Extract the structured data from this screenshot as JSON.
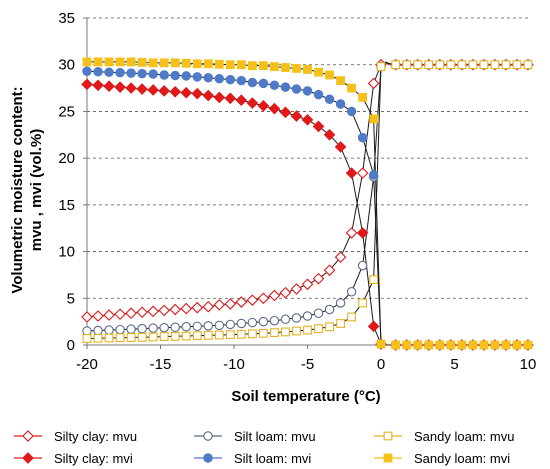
{
  "chart_data": {
    "type": "line",
    "title": "",
    "xlabel": "Soil temperature (°C)",
    "ylabel_line1": "Volumetric moisture content:",
    "ylabel_line2": "mvu , mvi  (vol.%)",
    "xlim": [
      -20,
      10
    ],
    "ylim": [
      0,
      35
    ],
    "xticks": [
      -20,
      -15,
      -10,
      -5,
      0,
      5,
      10
    ],
    "yticks": [
      0,
      5,
      10,
      15,
      20,
      25,
      30,
      35
    ],
    "grid": "horizontal dashed",
    "legend_position": "bottom",
    "series": [
      {
        "name": "Silty clay: mvu",
        "color": "#e0191b",
        "marker": "diamond",
        "filled": false,
        "x": [
          -20,
          -19.25,
          -18.5,
          -17.75,
          -17,
          -16.25,
          -15.5,
          -14.75,
          -14,
          -13.25,
          -12.5,
          -11.75,
          -11,
          -10.25,
          -9.5,
          -8.75,
          -8,
          -7.25,
          -6.5,
          -5.75,
          -5,
          -4.25,
          -3.5,
          -2.75,
          -2,
          -1.25,
          -0.5,
          0,
          0.3,
          0.6,
          1,
          1.75,
          2.5,
          3.25,
          4,
          4.75,
          5.5,
          6.25,
          7,
          7.75,
          8.5,
          9.25,
          10
        ],
        "y": [
          3.0,
          3.1,
          3.2,
          3.3,
          3.4,
          3.5,
          3.6,
          3.7,
          3.8,
          3.9,
          4.0,
          4.1,
          4.3,
          4.4,
          4.6,
          4.8,
          5.0,
          5.3,
          5.6,
          6.0,
          6.5,
          7.1,
          8.0,
          9.4,
          12.0,
          18.4,
          28.0,
          30.0,
          30.2,
          30.1,
          30.0,
          30.0,
          30.0,
          30.0,
          30.0,
          30.0,
          30.0,
          30.0,
          30.0,
          30.0,
          30.0,
          30.0,
          30.0
        ]
      },
      {
        "name": "Silt loam: mvu",
        "color": "#5a6a87",
        "marker": "circle",
        "filled": false,
        "x": [
          -20,
          -19.25,
          -18.5,
          -17.75,
          -17,
          -16.25,
          -15.5,
          -14.75,
          -14,
          -13.25,
          -12.5,
          -11.75,
          -11,
          -10.25,
          -9.5,
          -8.75,
          -8,
          -7.25,
          -6.5,
          -5.75,
          -5,
          -4.25,
          -3.5,
          -2.75,
          -2,
          -1.25,
          -0.5,
          0,
          0.3,
          0.6,
          1,
          1.75,
          2.5,
          3.25,
          4,
          4.75,
          5.5,
          6.25,
          7,
          7.75,
          8.5,
          9.25,
          10
        ],
        "y": [
          1.5,
          1.55,
          1.6,
          1.65,
          1.7,
          1.75,
          1.8,
          1.85,
          1.9,
          1.95,
          2.0,
          2.05,
          2.1,
          2.2,
          2.3,
          2.4,
          2.5,
          2.6,
          2.75,
          2.9,
          3.1,
          3.4,
          3.8,
          4.5,
          5.7,
          8.5,
          18.0,
          29.8,
          30.2,
          30.1,
          30.0,
          30.0,
          30.0,
          30.0,
          30.0,
          30.0,
          30.0,
          30.0,
          30.0,
          30.0,
          30.0,
          30.0,
          30.0
        ]
      },
      {
        "name": "Sandy loam: mvu",
        "color": "#e3b21f",
        "marker": "square",
        "filled": false,
        "x": [
          -20,
          -19.25,
          -18.5,
          -17.75,
          -17,
          -16.25,
          -15.5,
          -14.75,
          -14,
          -13.25,
          -12.5,
          -11.75,
          -11,
          -10.25,
          -9.5,
          -8.75,
          -8,
          -7.25,
          -6.5,
          -5.75,
          -5,
          -4.25,
          -3.5,
          -2.75,
          -2,
          -1.25,
          -0.5,
          0,
          0.3,
          0.6,
          1,
          1.75,
          2.5,
          3.25,
          4,
          4.75,
          5.5,
          6.25,
          7,
          7.75,
          8.5,
          9.25,
          10
        ],
        "y": [
          0.7,
          0.72,
          0.75,
          0.78,
          0.8,
          0.83,
          0.86,
          0.9,
          0.93,
          0.96,
          1.0,
          1.03,
          1.07,
          1.1,
          1.15,
          1.2,
          1.25,
          1.32,
          1.4,
          1.5,
          1.6,
          1.75,
          1.95,
          2.3,
          3.0,
          4.5,
          7.0,
          29.8,
          30.3,
          30.1,
          30.0,
          30.0,
          30.0,
          30.0,
          30.0,
          30.0,
          30.0,
          30.0,
          30.0,
          30.0,
          30.0,
          30.0,
          30.0
        ]
      },
      {
        "name": "Silty clay: mvi",
        "color": "#e0191b",
        "marker": "diamond",
        "filled": true,
        "x": [
          -20,
          -19.25,
          -18.5,
          -17.75,
          -17,
          -16.25,
          -15.5,
          -14.75,
          -14,
          -13.25,
          -12.5,
          -11.75,
          -11,
          -10.25,
          -9.5,
          -8.75,
          -8,
          -7.25,
          -6.5,
          -5.75,
          -5,
          -4.25,
          -3.5,
          -2.75,
          -2,
          -1.25,
          -0.5,
          0,
          0.3,
          0.6,
          1,
          1.75,
          2.5,
          3.25,
          4,
          4.75,
          5.5,
          6.25,
          7,
          7.75,
          8.5,
          9.25,
          10
        ],
        "y": [
          27.9,
          27.8,
          27.7,
          27.6,
          27.5,
          27.4,
          27.3,
          27.2,
          27.1,
          27.0,
          26.9,
          26.7,
          26.5,
          26.4,
          26.2,
          25.9,
          25.6,
          25.3,
          24.9,
          24.5,
          24.1,
          23.4,
          22.5,
          21.2,
          18.4,
          12.0,
          2.0,
          0.1,
          0.0,
          0.0,
          0.0,
          0.0,
          0.0,
          0.0,
          0.0,
          0.0,
          0.0,
          0.0,
          0.0,
          0.0,
          0.0,
          0.0,
          0.0
        ]
      },
      {
        "name": "Silt loam: mvi",
        "color": "#4f7ac7",
        "marker": "circle",
        "filled": true,
        "x": [
          -20,
          -19.25,
          -18.5,
          -17.75,
          -17,
          -16.25,
          -15.5,
          -14.75,
          -14,
          -13.25,
          -12.5,
          -11.75,
          -11,
          -10.25,
          -9.5,
          -8.75,
          -8,
          -7.25,
          -6.5,
          -5.75,
          -5,
          -4.25,
          -3.5,
          -2.75,
          -2,
          -1.25,
          -0.5,
          0,
          0.3,
          0.6,
          1,
          1.75,
          2.5,
          3.25,
          4,
          4.75,
          5.5,
          6.25,
          7,
          7.75,
          8.5,
          9.25,
          10
        ],
        "y": [
          29.3,
          29.25,
          29.2,
          29.15,
          29.1,
          29.05,
          29.0,
          28.9,
          28.85,
          28.8,
          28.7,
          28.6,
          28.5,
          28.4,
          28.3,
          28.1,
          28.0,
          27.8,
          27.6,
          27.4,
          27.2,
          26.8,
          26.3,
          25.8,
          25.0,
          22.2,
          18.2,
          0.1,
          0.0,
          0.0,
          0.0,
          0.0,
          0.0,
          0.0,
          0.0,
          0.0,
          0.0,
          0.0,
          0.0,
          0.0,
          0.0,
          0.0,
          0.0
        ]
      },
      {
        "name": "Sandy loam: mvi",
        "color": "#f5c018",
        "marker": "square",
        "filled": true,
        "x": [
          -20,
          -19.25,
          -18.5,
          -17.75,
          -17,
          -16.25,
          -15.5,
          -14.75,
          -14,
          -13.25,
          -12.5,
          -11.75,
          -11,
          -10.25,
          -9.5,
          -8.75,
          -8,
          -7.25,
          -6.5,
          -5.75,
          -5,
          -4.25,
          -3.5,
          -2.75,
          -2,
          -1.25,
          -0.5,
          0,
          0.3,
          0.6,
          1,
          1.75,
          2.5,
          3.25,
          4,
          4.75,
          5.5,
          6.25,
          7,
          7.75,
          8.5,
          9.25,
          10
        ],
        "y": [
          30.3,
          30.3,
          30.3,
          30.3,
          30.3,
          30.25,
          30.2,
          30.2,
          30.2,
          30.15,
          30.1,
          30.1,
          30.05,
          30.0,
          30.0,
          29.9,
          29.9,
          29.8,
          29.7,
          29.6,
          29.5,
          29.2,
          28.9,
          28.3,
          27.5,
          26.5,
          24.2,
          0.1,
          0.0,
          0.0,
          0.0,
          0.0,
          0.0,
          0.0,
          0.0,
          0.0,
          0.0,
          0.0,
          0.0,
          0.0,
          0.0,
          0.0,
          0.0
        ]
      }
    ]
  }
}
